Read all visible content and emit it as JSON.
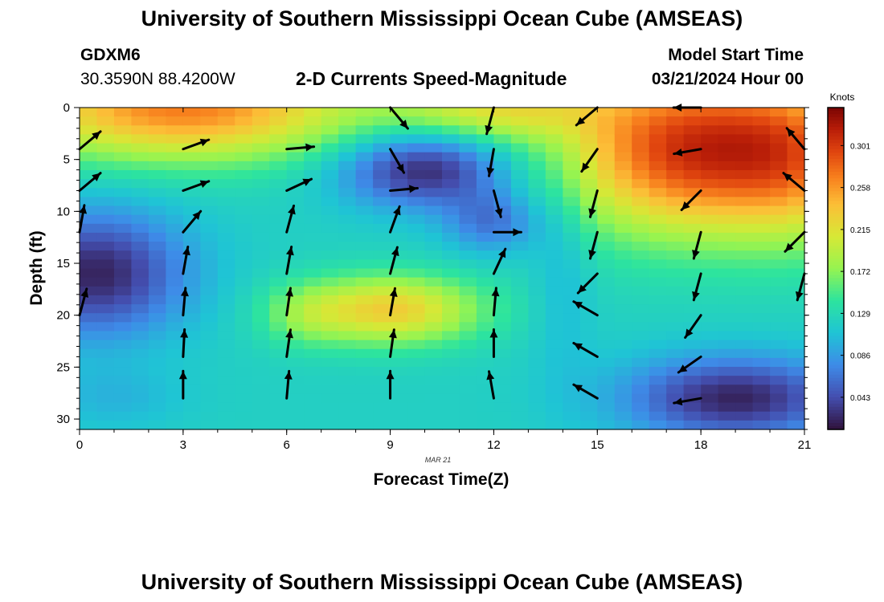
{
  "header": {
    "top_title": "University of Southern Mississippi Ocean Cube (AMSEAS)",
    "station_id": "GDXM6",
    "coordinates": "30.3590N  88.4200W",
    "model_start_label": "Model Start Time",
    "model_start_value": "03/21/2024 Hour 00",
    "bottom_title": "University of Southern Mississippi Ocean Cube (AMSEAS)"
  },
  "chart_data": {
    "type": "heatmap",
    "title": "2-D Currents Speed-Magnitude",
    "xlabel": "Forecast Time(Z)",
    "ylabel": "Depth (ft)",
    "date_label": "MAR 21",
    "xlim": [
      0,
      21
    ],
    "ylim": [
      0,
      31
    ],
    "x_ticks": [
      0,
      3,
      6,
      9,
      12,
      15,
      18,
      21
    ],
    "y_ticks": [
      0,
      5,
      10,
      15,
      20,
      25,
      30
    ],
    "colorbar": {
      "label": "Knots",
      "min": 0.01,
      "max": 0.34,
      "ticks": [
        "0.043",
        "0.086",
        "0.129",
        "0.172",
        "0.215",
        "0.258",
        "0.301"
      ]
    },
    "vectors": [
      {
        "t": 0,
        "d": 4,
        "dir": 50
      },
      {
        "t": 0,
        "d": 8,
        "dir": 50
      },
      {
        "t": 0,
        "d": 12,
        "dir": 10
      },
      {
        "t": 0,
        "d": 20,
        "dir": 15
      },
      {
        "t": 3,
        "d": 4,
        "dir": 70
      },
      {
        "t": 3,
        "d": 8,
        "dir": 70
      },
      {
        "t": 3,
        "d": 12,
        "dir": 40
      },
      {
        "t": 3,
        "d": 16,
        "dir": 10
      },
      {
        "t": 3,
        "d": 20,
        "dir": 5
      },
      {
        "t": 3,
        "d": 24,
        "dir": 3
      },
      {
        "t": 3,
        "d": 28,
        "dir": 0
      },
      {
        "t": 6,
        "d": 4,
        "dir": 85
      },
      {
        "t": 6,
        "d": 8,
        "dir": 65
      },
      {
        "t": 6,
        "d": 12,
        "dir": 15
      },
      {
        "t": 6,
        "d": 16,
        "dir": 10
      },
      {
        "t": 6,
        "d": 20,
        "dir": 8
      },
      {
        "t": 6,
        "d": 24,
        "dir": 8
      },
      {
        "t": 6,
        "d": 28,
        "dir": 5
      },
      {
        "t": 9,
        "d": 0,
        "dir": 140
      },
      {
        "t": 9,
        "d": 4,
        "dir": 150
      },
      {
        "t": 9,
        "d": 8,
        "dir": 85
      },
      {
        "t": 9,
        "d": 12,
        "dir": 20
      },
      {
        "t": 9,
        "d": 16,
        "dir": 15
      },
      {
        "t": 9,
        "d": 20,
        "dir": 10
      },
      {
        "t": 9,
        "d": 24,
        "dir": 8
      },
      {
        "t": 9,
        "d": 28,
        "dir": 0
      },
      {
        "t": 12,
        "d": 0,
        "dir": 195
      },
      {
        "t": 12,
        "d": 4,
        "dir": 190
      },
      {
        "t": 12,
        "d": 8,
        "dir": 165
      },
      {
        "t": 12,
        "d": 12,
        "dir": 90
      },
      {
        "t": 12,
        "d": 16,
        "dir": 25
      },
      {
        "t": 12,
        "d": 20,
        "dir": 5
      },
      {
        "t": 12,
        "d": 24,
        "dir": 0
      },
      {
        "t": 12,
        "d": 28,
        "dir": 350
      },
      {
        "t": 15,
        "d": 0,
        "dir": 230
      },
      {
        "t": 15,
        "d": 4,
        "dir": 215
      },
      {
        "t": 15,
        "d": 8,
        "dir": 195
      },
      {
        "t": 15,
        "d": 12,
        "dir": 195
      },
      {
        "t": 15,
        "d": 16,
        "dir": 225
      },
      {
        "t": 15,
        "d": 20,
        "dir": 300
      },
      {
        "t": 15,
        "d": 24,
        "dir": 300
      },
      {
        "t": 15,
        "d": 28,
        "dir": 300
      },
      {
        "t": 18,
        "d": 0,
        "dir": 270
      },
      {
        "t": 18,
        "d": 4,
        "dir": 260
      },
      {
        "t": 18,
        "d": 8,
        "dir": 225
      },
      {
        "t": 18,
        "d": 12,
        "dir": 195
      },
      {
        "t": 18,
        "d": 16,
        "dir": 195
      },
      {
        "t": 18,
        "d": 20,
        "dir": 215
      },
      {
        "t": 18,
        "d": 24,
        "dir": 235
      },
      {
        "t": 18,
        "d": 28,
        "dir": 260
      },
      {
        "t": 21,
        "d": 4,
        "dir": 320
      },
      {
        "t": 21,
        "d": 8,
        "dir": 310
      },
      {
        "t": 21,
        "d": 12,
        "dir": 225
      },
      {
        "t": 21,
        "d": 16,
        "dir": 195
      }
    ]
  }
}
